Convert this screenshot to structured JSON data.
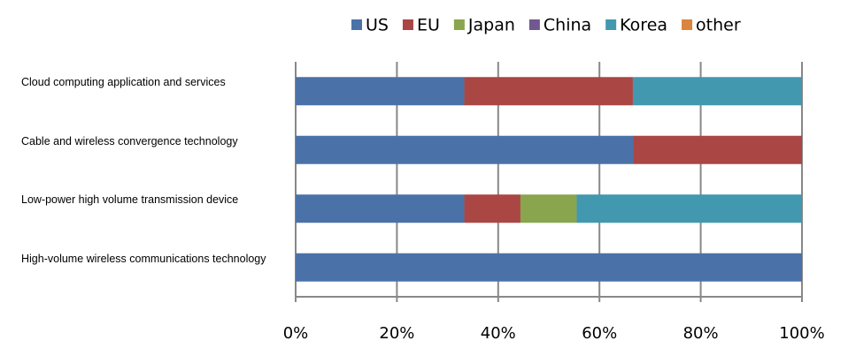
{
  "chart_data": {
    "type": "stacked-barh",
    "categories": [
      "Cloud computing application and services",
      "Cable and wireless convergence technology",
      "Low-power high volume transmission device",
      "High-volume wireless communications technology"
    ],
    "series": [
      {
        "name": "US",
        "color": "#4a72a8",
        "values": [
          33.3,
          66.7,
          33.3,
          100
        ]
      },
      {
        "name": "EU",
        "color": "#aa4644",
        "values": [
          33.3,
          33.3,
          11.1,
          0
        ]
      },
      {
        "name": "Japan",
        "color": "#89a54e",
        "values": [
          0,
          0,
          11.1,
          0
        ]
      },
      {
        "name": "China",
        "color": "#71588f",
        "values": [
          0,
          0,
          0,
          0
        ]
      },
      {
        "name": "Korea",
        "color": "#4198af",
        "values": [
          33.4,
          0,
          44.5,
          0
        ]
      },
      {
        "name": "other",
        "color": "#db843d",
        "values": [
          0,
          0,
          0,
          0
        ]
      }
    ],
    "xlim": [
      0,
      100
    ],
    "xticks": [
      {
        "value": 0,
        "label": "0%"
      },
      {
        "value": 20,
        "label": "20%"
      },
      {
        "value": 40,
        "label": "40%"
      },
      {
        "value": 60,
        "label": "60%"
      },
      {
        "value": 80,
        "label": "80%"
      },
      {
        "value": 100,
        "label": "100%"
      }
    ],
    "grid": true
  }
}
